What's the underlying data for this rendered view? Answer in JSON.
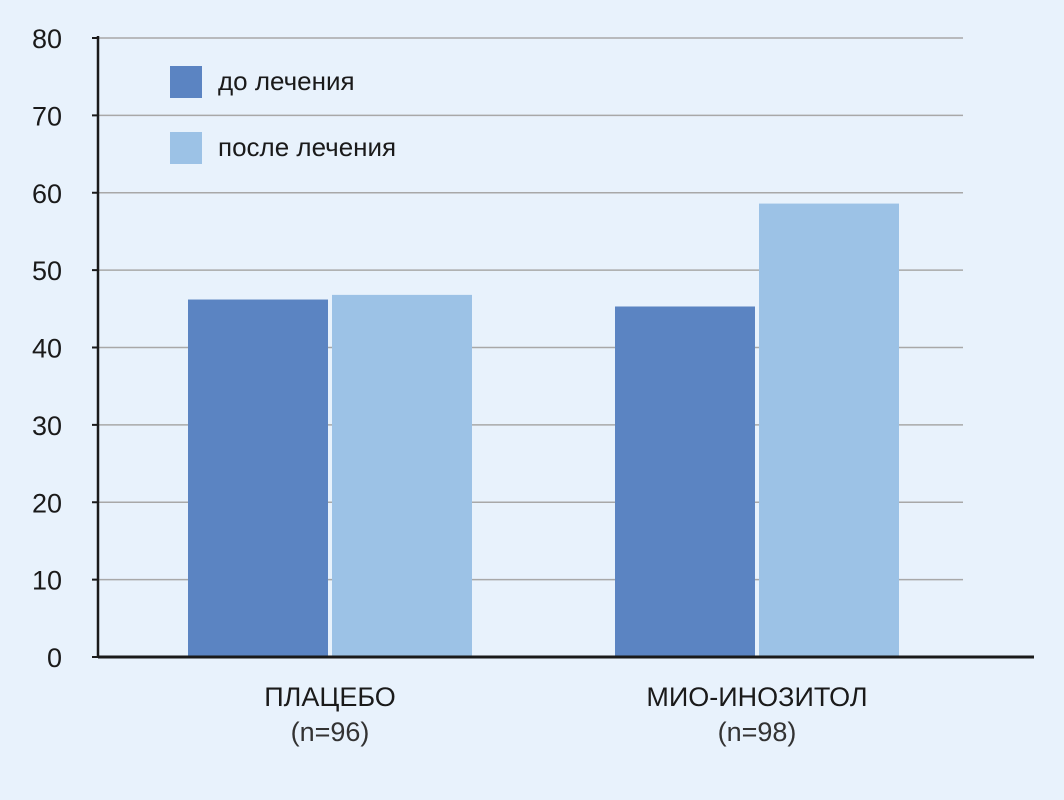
{
  "chart_data": {
    "type": "bar",
    "categories": [
      "ПЛАЦЕБО",
      "МИО-ИНОЗИТОЛ"
    ],
    "category_sublabels": [
      "(n=96)",
      "(n=98)"
    ],
    "series": [
      {
        "name": "до лечения",
        "color": "#5b84c2",
        "values": [
          46.2,
          45.3
        ]
      },
      {
        "name": "после лечения",
        "color": "#9cc2e6",
        "values": [
          46.8,
          58.6
        ]
      }
    ],
    "y_ticks": [
      "0",
      "10",
      "20",
      "30",
      "40",
      "50",
      "60",
      "70",
      "80"
    ],
    "ylim": [
      0,
      80
    ],
    "grid": true,
    "legend_position": "top-left",
    "title": "",
    "xlabel": "",
    "ylabel": ""
  },
  "colors": {
    "background": "#e8f2fc",
    "grid": "#a8a8a8",
    "axis": "#1a1a1a"
  }
}
